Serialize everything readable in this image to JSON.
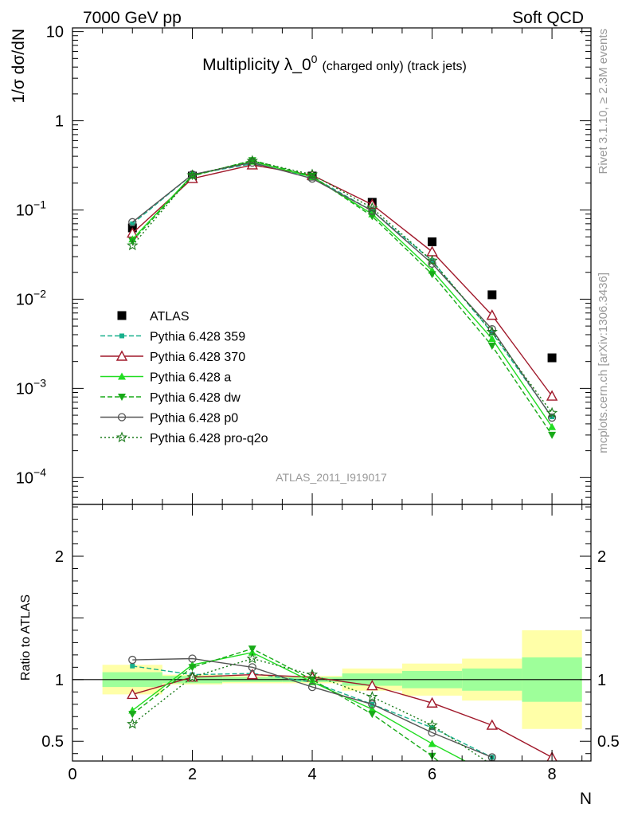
{
  "header": {
    "left": "7000 GeV pp",
    "right": "Soft QCD"
  },
  "plot": {
    "title_main": "Multiplicity λ_0",
    "title_sup": "0",
    "title_suffix": "(charged only) (track jets)",
    "analysis_id": "ATLAS_2011_I919017",
    "ylabel_top": "1/σ dσ/dN",
    "ylabel_bottom": "Ratio to ATLAS",
    "xlabel": "N",
    "side_label_top": "Rivet 3.1.10, ≥ 2.3M events",
    "side_label_bottom": "mcplots.cern.ch [arXiv:1306.3436]"
  },
  "chart_data": [
    {
      "type": "scatter",
      "panel": "main",
      "yscale": "log",
      "xlim": [
        0,
        8.65
      ],
      "ylim": [
        5e-05,
        11
      ],
      "x_ticks": [
        0,
        2,
        4,
        6,
        8
      ],
      "y_ticks": [
        {
          "value": 10,
          "label": "10"
        },
        {
          "value": 1,
          "label": "1"
        },
        {
          "value": 0.1,
          "label": "10",
          "exp": "−1"
        },
        {
          "value": 0.01,
          "label": "10",
          "exp": "−2"
        },
        {
          "value": 0.001,
          "label": "10",
          "exp": "−3"
        },
        {
          "value": 0.0001,
          "label": "10",
          "exp": "−4"
        }
      ],
      "legend_position": "center-left",
      "series": [
        {
          "name": "ATLAS",
          "color": "#000000",
          "marker": "square",
          "dash": "none",
          "x": [
            1,
            2,
            3,
            4,
            5,
            6,
            7,
            8
          ],
          "y": [
            0.063,
            0.24,
            0.32,
            0.24,
            0.122,
            0.044,
            0.0112,
            0.0022
          ]
        },
        {
          "name": "Pythia 6.428 359",
          "color": "#18b08c",
          "marker": "smallsquare",
          "dash": "6,3",
          "x": [
            1,
            2,
            3,
            4,
            5,
            6,
            7,
            8
          ],
          "y": [
            0.07,
            0.25,
            0.33,
            0.235,
            0.098,
            0.027,
            0.0042,
            0.00048
          ]
        },
        {
          "name": "Pythia 6.428 370",
          "color": "#a0182a",
          "marker": "triangle-open",
          "dash": "none",
          "x": [
            1,
            2,
            3,
            4,
            5,
            6,
            7,
            8
          ],
          "y": [
            0.055,
            0.225,
            0.32,
            0.245,
            0.115,
            0.034,
            0.0066,
            0.00082
          ]
        },
        {
          "name": "Pythia 6.428 a",
          "color": "#22dd22",
          "marker": "triangle",
          "dash": "none",
          "x": [
            1,
            2,
            3,
            4,
            5,
            6,
            7,
            8
          ],
          "y": [
            0.047,
            0.245,
            0.35,
            0.235,
            0.09,
            0.021,
            0.0036,
            0.00037
          ]
        },
        {
          "name": "Pythia 6.428 dw",
          "color": "#18aa18",
          "marker": "triangle-down",
          "dash": "6,3",
          "x": [
            1,
            2,
            3,
            4,
            5,
            6,
            7,
            8
          ],
          "y": [
            0.045,
            0.24,
            0.36,
            0.24,
            0.085,
            0.019,
            0.003,
            0.0003
          ]
        },
        {
          "name": "Pythia 6.428 p0",
          "color": "#555555",
          "marker": "circle-open",
          "dash": "none",
          "x": [
            1,
            2,
            3,
            4,
            5,
            6,
            7,
            8
          ],
          "y": [
            0.073,
            0.25,
            0.34,
            0.225,
            0.098,
            0.025,
            0.0046,
            0.00047
          ]
        },
        {
          "name": "Pythia 6.428 pro-q2o",
          "color": "#1a7a1a",
          "marker": "star",
          "dash": "2,3",
          "x": [
            1,
            2,
            3,
            4,
            5,
            6,
            7,
            8
          ],
          "y": [
            0.04,
            0.245,
            0.355,
            0.25,
            0.105,
            0.027,
            0.0043,
            0.00053
          ]
        }
      ]
    },
    {
      "type": "scatter",
      "panel": "ratio",
      "xlim": [
        0,
        8.65
      ],
      "ylim": [
        0.34,
        2.42
      ],
      "x_ticks": [
        0,
        2,
        4,
        6,
        8
      ],
      "y_ticks": [
        {
          "value": 2,
          "label": "2"
        },
        {
          "value": 1,
          "label": "1"
        },
        {
          "value": 0.5,
          "label": "0.5"
        }
      ],
      "bands": [
        {
          "x": [
            0.5,
            1.5
          ],
          "inner": [
            0.94,
            1.06
          ],
          "outer": [
            0.88,
            1.12
          ]
        },
        {
          "x": [
            1.5,
            2.5
          ],
          "inner": [
            0.97,
            1.03
          ],
          "outer": [
            0.96,
            1.04
          ]
        },
        {
          "x": [
            2.5,
            3.5
          ],
          "inner": [
            0.98,
            1.02
          ],
          "outer": [
            0.97,
            1.03
          ]
        },
        {
          "x": [
            3.5,
            4.5
          ],
          "inner": [
            0.98,
            1.02
          ],
          "outer": [
            0.97,
            1.03
          ]
        },
        {
          "x": [
            4.5,
            5.5
          ],
          "inner": [
            0.95,
            1.05
          ],
          "outer": [
            0.91,
            1.09
          ]
        },
        {
          "x": [
            5.5,
            6.5
          ],
          "inner": [
            0.93,
            1.07
          ],
          "outer": [
            0.87,
            1.13
          ]
        },
        {
          "x": [
            6.5,
            7.5
          ],
          "inner": [
            0.91,
            1.09
          ],
          "outer": [
            0.83,
            1.17
          ]
        },
        {
          "x": [
            7.5,
            8.5
          ],
          "inner": [
            0.82,
            1.18
          ],
          "outer": [
            0.6,
            1.4
          ]
        }
      ],
      "series": [
        {
          "name": "Pythia 6.428 359",
          "x": [
            1,
            2,
            3,
            4,
            5,
            6,
            7
          ],
          "y": [
            1.11,
            1.04,
            1.05,
            0.98,
            0.8,
            0.61,
            0.37
          ]
        },
        {
          "name": "Pythia 6.428 370",
          "x": [
            1,
            2,
            3,
            4,
            5,
            6,
            7,
            8
          ],
          "y": [
            0.88,
            1.02,
            1.04,
            1.02,
            0.95,
            0.81,
            0.63,
            0.37
          ]
        },
        {
          "name": "Pythia 6.428 a",
          "x": [
            1,
            2,
            3,
            4,
            5,
            6,
            6.55
          ],
          "y": [
            0.75,
            1.12,
            1.22,
            0.98,
            0.76,
            0.48,
            0.34
          ]
        },
        {
          "name": "Pythia 6.428 dw",
          "x": [
            1,
            2,
            3,
            4,
            5,
            6,
            6.1
          ],
          "y": [
            0.72,
            1.1,
            1.25,
            1.0,
            0.72,
            0.38,
            0.34
          ]
        },
        {
          "name": "Pythia 6.428 p0",
          "x": [
            1,
            2,
            3,
            4,
            5,
            6,
            7
          ],
          "y": [
            1.16,
            1.17,
            1.1,
            0.94,
            0.8,
            0.57,
            0.37
          ]
        },
        {
          "name": "Pythia 6.428 pro-q2o",
          "x": [
            1,
            2,
            3,
            4,
            5,
            6,
            6.9
          ],
          "y": [
            0.64,
            1.02,
            1.17,
            1.04,
            0.86,
            0.63,
            0.34
          ]
        }
      ]
    }
  ]
}
